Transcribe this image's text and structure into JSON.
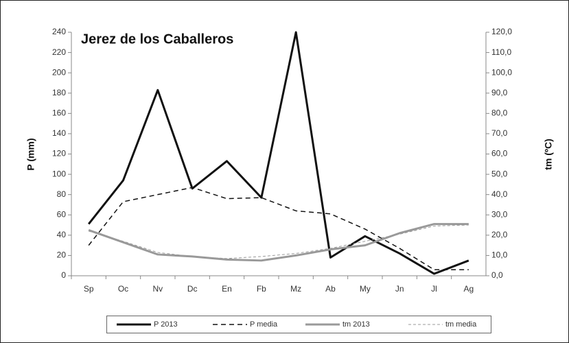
{
  "chart_data": {
    "type": "line",
    "title": "Jerez de los Caballeros",
    "ylabel": "P (mm)",
    "y2label": "tm (ºC)",
    "categories": [
      "Sp",
      "Oc",
      "Nv",
      "Dc",
      "En",
      "Fb",
      "Mz",
      "Ab",
      "My",
      "Jn",
      "Jl",
      "Ag"
    ],
    "series": [
      {
        "name": "P 2013",
        "color": "#111111",
        "width": 3,
        "dashed": false,
        "values": [
          51,
          94,
          183,
          86,
          113,
          77,
          240,
          18,
          39,
          22,
          2,
          15
        ]
      },
      {
        "name": "P media",
        "color": "#111111",
        "width": 1.5,
        "dashed": true,
        "values": [
          30,
          73,
          80,
          87,
          76,
          77,
          64,
          61,
          46,
          27,
          6,
          6
        ]
      },
      {
        "name": "tm 2013",
        "color": "#999999",
        "width": 3,
        "dashed": false,
        "axis": "y2",
        "values": [
          22.5,
          16.5,
          10.5,
          9.5,
          8,
          7.5,
          10,
          13,
          15,
          21,
          25.5,
          25.5
        ]
      },
      {
        "name": "tm media",
        "color": "#999999",
        "width": 1,
        "dashed": true,
        "axis": "y2",
        "values": [
          22,
          17,
          11.5,
          9.5,
          8.5,
          9.5,
          11,
          13.5,
          17,
          20.5,
          24.5,
          25
        ]
      }
    ],
    "ylim": [
      0,
      240
    ],
    "yticks": [
      0,
      20,
      40,
      60,
      80,
      100,
      120,
      140,
      160,
      180,
      200,
      220,
      240
    ],
    "y2lim": [
      0,
      120
    ],
    "y2ticks": [
      {
        "value": 0,
        "label": "0,0"
      },
      {
        "value": 10,
        "label": "10,0"
      },
      {
        "value": 20,
        "label": "20,0"
      },
      {
        "value": 30,
        "label": "30,0"
      },
      {
        "value": 40,
        "label": "40,0"
      },
      {
        "value": 50,
        "label": "50,0"
      },
      {
        "value": 60,
        "label": "60,0"
      },
      {
        "value": 70,
        "label": "70,0"
      },
      {
        "value": 80,
        "label": "80,0"
      },
      {
        "value": 90,
        "label": "90,0"
      },
      {
        "value": 100,
        "label": "100,0"
      },
      {
        "value": 110,
        "label": "110,0"
      },
      {
        "value": 120,
        "label": "120,0"
      }
    ],
    "legend": "bottom",
    "grid": false
  }
}
